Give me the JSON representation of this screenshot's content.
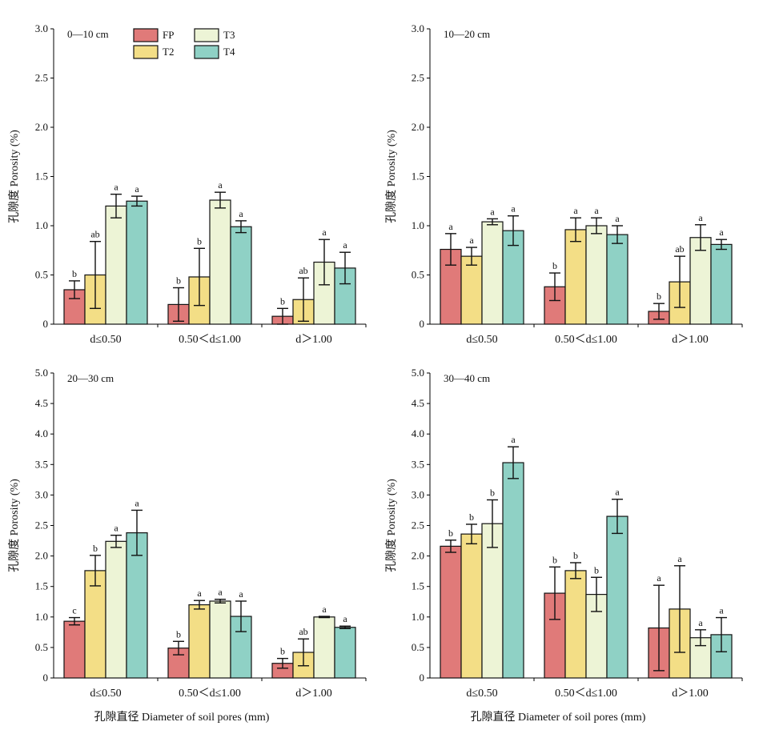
{
  "series_colors": {
    "FP": "#E07A79",
    "T2": "#F3DE86",
    "T3": "#EDF4D6",
    "T4": "#8FD1C5"
  },
  "chart_data": [
    {
      "type": "bar",
      "title": "0—10 cm",
      "ylabel": "孔隙度 Porosity (%)",
      "xlabel": "",
      "ylim": [
        0,
        3.0
      ],
      "yticks": [
        "0",
        "0.5",
        "1.0",
        "1.5",
        "2.0",
        "2.5",
        "3.0"
      ],
      "categories": [
        "d≤0.50",
        "0.50＜d≤1.00",
        "d＞1.00"
      ],
      "legend": [
        "FP",
        "T2",
        "T3",
        "T4"
      ],
      "series": [
        {
          "name": "FP",
          "values": [
            0.35,
            0.2,
            0.08
          ],
          "errors": [
            0.09,
            0.17,
            0.08
          ],
          "letters": [
            "b",
            "b",
            "b"
          ]
        },
        {
          "name": "T2",
          "values": [
            0.5,
            0.48,
            0.25
          ],
          "errors": [
            0.34,
            0.29,
            0.22
          ],
          "letters": [
            "ab",
            "b",
            "ab"
          ]
        },
        {
          "name": "T3",
          "values": [
            1.2,
            1.26,
            0.63
          ],
          "errors": [
            0.12,
            0.08,
            0.23
          ],
          "letters": [
            "a",
            "a",
            "a"
          ]
        },
        {
          "name": "T4",
          "values": [
            1.25,
            0.99,
            0.57
          ],
          "errors": [
            0.05,
            0.06,
            0.16
          ],
          "letters": [
            "a",
            "a",
            "a"
          ]
        }
      ]
    },
    {
      "type": "bar",
      "title": "10—20 cm",
      "ylabel": "孔隙度 Porosity (%)",
      "xlabel": "",
      "ylim": [
        0,
        3.0
      ],
      "yticks": [
        "0",
        "0.5",
        "1.0",
        "1.5",
        "2.0",
        "2.5",
        "3.0"
      ],
      "categories": [
        "d≤0.50",
        "0.50＜d≤1.00",
        "d＞1.00"
      ],
      "series": [
        {
          "name": "FP",
          "values": [
            0.76,
            0.38,
            0.13
          ],
          "errors": [
            0.16,
            0.14,
            0.08
          ],
          "letters": [
            "a",
            "b",
            "b"
          ]
        },
        {
          "name": "T2",
          "values": [
            0.69,
            0.96,
            0.43
          ],
          "errors": [
            0.09,
            0.12,
            0.26
          ],
          "letters": [
            "a",
            "a",
            "ab"
          ]
        },
        {
          "name": "T3",
          "values": [
            1.04,
            1.0,
            0.88
          ],
          "errors": [
            0.03,
            0.08,
            0.13
          ],
          "letters": [
            "a",
            "a",
            "a"
          ]
        },
        {
          "name": "T4",
          "values": [
            0.95,
            0.91,
            0.81
          ],
          "errors": [
            0.15,
            0.09,
            0.05
          ],
          "letters": [
            "a",
            "a",
            "a"
          ]
        }
      ]
    },
    {
      "type": "bar",
      "title": "20—30 cm",
      "ylabel": "孔隙度 Porosity (%)",
      "xlabel": "孔隙直径 Diameter of soil pores (mm)",
      "ylim": [
        0,
        5.0
      ],
      "yticks": [
        "0",
        "0.5",
        "1.0",
        "1.5",
        "2.0",
        "2.5",
        "3.0",
        "3.5",
        "4.0",
        "4.5",
        "5.0"
      ],
      "categories": [
        "d≤0.50",
        "0.50＜d≤1.00",
        "d＞1.00"
      ],
      "series": [
        {
          "name": "FP",
          "values": [
            0.93,
            0.49,
            0.24
          ],
          "errors": [
            0.06,
            0.11,
            0.08
          ],
          "letters": [
            "c",
            "b",
            "b"
          ]
        },
        {
          "name": "T2",
          "values": [
            1.76,
            1.2,
            0.42
          ],
          "errors": [
            0.25,
            0.07,
            0.22
          ],
          "letters": [
            "b",
            "a",
            "ab"
          ]
        },
        {
          "name": "T3",
          "values": [
            2.24,
            1.26,
            1.0
          ],
          "errors": [
            0.1,
            0.03,
            0.01
          ],
          "letters": [
            "a",
            "a",
            "a"
          ]
        },
        {
          "name": "T4",
          "values": [
            2.38,
            1.01,
            0.83
          ],
          "errors": [
            0.37,
            0.25,
            0.02
          ],
          "letters": [
            "a",
            "a",
            "a"
          ]
        }
      ]
    },
    {
      "type": "bar",
      "title": "30—40 cm",
      "ylabel": "孔隙度 Porosity (%)",
      "xlabel": "孔隙直径 Diameter of soil pores (mm)",
      "ylim": [
        0,
        5.0
      ],
      "yticks": [
        "0",
        "0.5",
        "1.0",
        "1.5",
        "2.0",
        "2.5",
        "3.0",
        "3.5",
        "4.0",
        "4.5",
        "5.0"
      ],
      "categories": [
        "d≤0.50",
        "0.50＜d≤1.00",
        "d＞1.00"
      ],
      "series": [
        {
          "name": "FP",
          "values": [
            2.16,
            1.39,
            0.82
          ],
          "errors": [
            0.1,
            0.43,
            0.7
          ],
          "letters": [
            "b",
            "b",
            "a"
          ]
        },
        {
          "name": "T2",
          "values": [
            2.36,
            1.76,
            1.13
          ],
          "errors": [
            0.16,
            0.13,
            0.71
          ],
          "letters": [
            "b",
            "b",
            "a"
          ]
        },
        {
          "name": "T3",
          "values": [
            2.53,
            1.37,
            0.66
          ],
          "errors": [
            0.39,
            0.28,
            0.13
          ],
          "letters": [
            "b",
            "b",
            "a"
          ]
        },
        {
          "name": "T4",
          "values": [
            3.53,
            2.65,
            0.71
          ],
          "errors": [
            0.26,
            0.28,
            0.28
          ],
          "letters": [
            "a",
            "a",
            "a"
          ]
        }
      ]
    }
  ]
}
